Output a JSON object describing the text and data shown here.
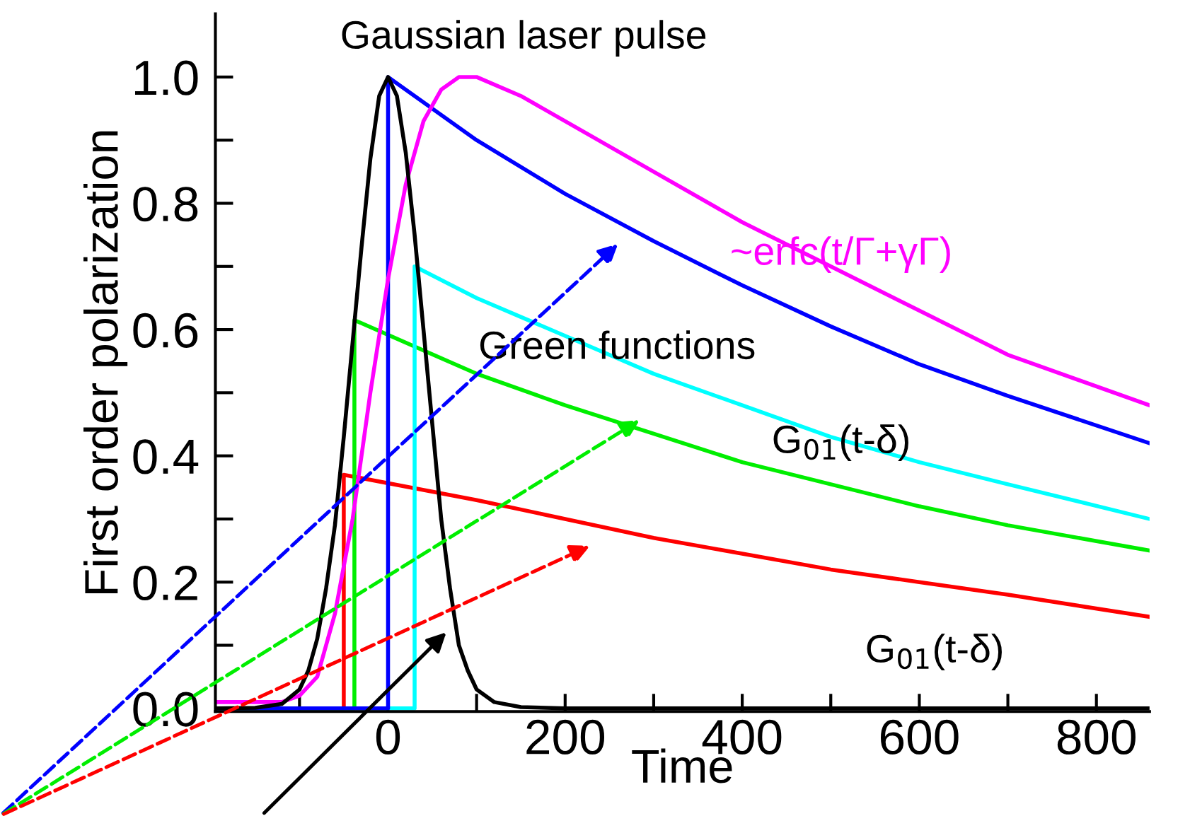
{
  "chart_data": {
    "type": "line",
    "xlabel": "Time",
    "ylabel": "First order polarization",
    "xlim": [
      -195,
      860
    ],
    "ylim": [
      -0.005,
      1.1
    ],
    "xticks": [
      {
        "value": -100,
        "label": null
      },
      0,
      {
        "value": 100,
        "label": null
      },
      200,
      {
        "value": 300,
        "label": null
      },
      400,
      {
        "value": 500,
        "label": null
      },
      600,
      {
        "value": 700,
        "label": null
      },
      800
    ],
    "yticks": [
      {
        "value": 0,
        "label": "0.0"
      },
      {
        "value": 0.1,
        "label": null
      },
      {
        "value": 0.2,
        "label": "0.2"
      },
      {
        "value": 0.3,
        "label": null
      },
      {
        "value": 0.4,
        "label": "0.4"
      },
      {
        "value": 0.5,
        "label": null
      },
      {
        "value": 0.6,
        "label": "0.6"
      },
      {
        "value": 0.7,
        "label": null
      },
      {
        "value": 0.8,
        "label": "0.8"
      },
      {
        "value": 0.9,
        "label": null
      },
      {
        "value": 1.0,
        "label": "1.0"
      }
    ],
    "grid": false,
    "legend": false,
    "marker": "none",
    "line_style": "solid",
    "series": [
      {
        "color": "#ff0000",
        "x": [
          -195,
          -50,
          -50,
          100,
          200,
          300,
          400,
          500,
          600,
          700,
          860
        ],
        "values": [
          0,
          0,
          0.37,
          0.33,
          0.3,
          0.27,
          0.245,
          0.22,
          0.2,
          0.18,
          0.145
        ]
      },
      {
        "color": "#00ee00",
        "x": [
          -195,
          -38,
          -38,
          100,
          200,
          300,
          400,
          500,
          600,
          700,
          860
        ],
        "values": [
          0,
          0,
          0.615,
          0.53,
          0.48,
          0.435,
          0.39,
          0.355,
          0.32,
          0.29,
          0.25
        ]
      },
      {
        "color": "#00ffff",
        "x": [
          -195,
          30,
          30,
          100,
          200,
          300,
          400,
          500,
          600,
          700,
          860
        ],
        "values": [
          0,
          0,
          0.7,
          0.65,
          0.59,
          0.53,
          0.48,
          0.43,
          0.39,
          0.355,
          0.3
        ]
      },
      {
        "color": "#0000ff",
        "x": [
          -195,
          0,
          0,
          100,
          200,
          300,
          400,
          500,
          600,
          700,
          860
        ],
        "values": [
          0,
          0,
          1.0,
          0.9,
          0.815,
          0.74,
          0.67,
          0.605,
          0.545,
          0.495,
          0.42
        ]
      },
      {
        "color": "#ff00ff",
        "x": [
          -195,
          -120,
          -100,
          -80,
          -60,
          -40,
          -20,
          0,
          20,
          40,
          60,
          80,
          100,
          150,
          200,
          300,
          400,
          500,
          600,
          700,
          860
        ],
        "values": [
          0.01,
          0.01,
          0.02,
          0.05,
          0.15,
          0.3,
          0.5,
          0.68,
          0.83,
          0.93,
          0.98,
          1.0,
          1.0,
          0.97,
          0.93,
          0.85,
          0.77,
          0.7,
          0.63,
          0.56,
          0.48
        ]
      },
      {
        "color": "#000000",
        "x": [
          -195,
          -150,
          -120,
          -100,
          -90,
          -80,
          -70,
          -60,
          -50,
          -40,
          -30,
          -20,
          -10,
          0,
          10,
          20,
          30,
          40,
          50,
          60,
          70,
          80,
          90,
          100,
          120,
          150,
          200,
          860
        ],
        "values": [
          0,
          0.001,
          0.007,
          0.03,
          0.06,
          0.11,
          0.19,
          0.29,
          0.43,
          0.58,
          0.73,
          0.87,
          0.97,
          1.0,
          0.97,
          0.88,
          0.75,
          0.6,
          0.45,
          0.3,
          0.19,
          0.1,
          0.06,
          0.03,
          0.01,
          0.002,
          0,
          0
        ]
      }
    ],
    "annotations": [
      "Gaussian laser pulse",
      "Green functions",
      "~erfc(t/Γ+γΓ)",
      "G$_{01}$(t-δ)",
      "G$_{01}$(t-δ)"
    ]
  }
}
